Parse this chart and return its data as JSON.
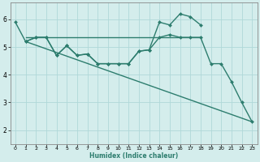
{
  "line_color": "#2d7d6e",
  "bg_color": "#d4edec",
  "grid_color": "#b0d8d8",
  "xlabel": "Humidex (Indice chaleur)",
  "xlim": [
    -0.5,
    23.5
  ],
  "ylim": [
    1.5,
    6.6
  ],
  "xticks": [
    0,
    1,
    2,
    3,
    4,
    5,
    6,
    7,
    8,
    9,
    10,
    11,
    12,
    13,
    14,
    15,
    16,
    17,
    18,
    19,
    20,
    21,
    22,
    23
  ],
  "yticks": [
    2,
    3,
    4,
    5,
    6
  ],
  "lines": [
    {
      "x": [
        0,
        1,
        2,
        3,
        4,
        5,
        6,
        7,
        8,
        9,
        10,
        11,
        12,
        13,
        14,
        15,
        16,
        17,
        18
      ],
      "y": [
        5.9,
        5.2,
        5.35,
        5.35,
        4.7,
        5.05,
        4.7,
        4.75,
        4.4,
        4.4,
        4.4,
        4.4,
        4.85,
        4.9,
        5.9,
        5.8,
        6.2,
        6.1,
        5.8
      ],
      "marker": "D",
      "markersize": 2.0,
      "lw": 1.0
    },
    {
      "x": [
        1,
        18
      ],
      "y": [
        5.35,
        5.35
      ],
      "marker": null,
      "markersize": 0,
      "lw": 1.0
    },
    {
      "x": [
        1,
        23
      ],
      "y": [
        5.2,
        2.3
      ],
      "marker": null,
      "markersize": 0,
      "lw": 1.0
    },
    {
      "x": [
        1,
        2,
        3,
        4,
        5,
        6,
        7,
        8,
        9,
        10,
        11,
        12,
        13,
        14,
        15,
        16,
        17,
        18,
        19,
        20,
        21,
        22,
        23
      ],
      "y": [
        5.2,
        5.35,
        5.35,
        4.7,
        5.05,
        4.7,
        4.75,
        4.4,
        4.4,
        4.4,
        4.4,
        4.85,
        4.9,
        5.35,
        5.45,
        5.35,
        5.35,
        5.35,
        4.4,
        4.4,
        3.75,
        3.0,
        2.3
      ],
      "marker": "D",
      "markersize": 2.0,
      "lw": 1.0
    }
  ]
}
